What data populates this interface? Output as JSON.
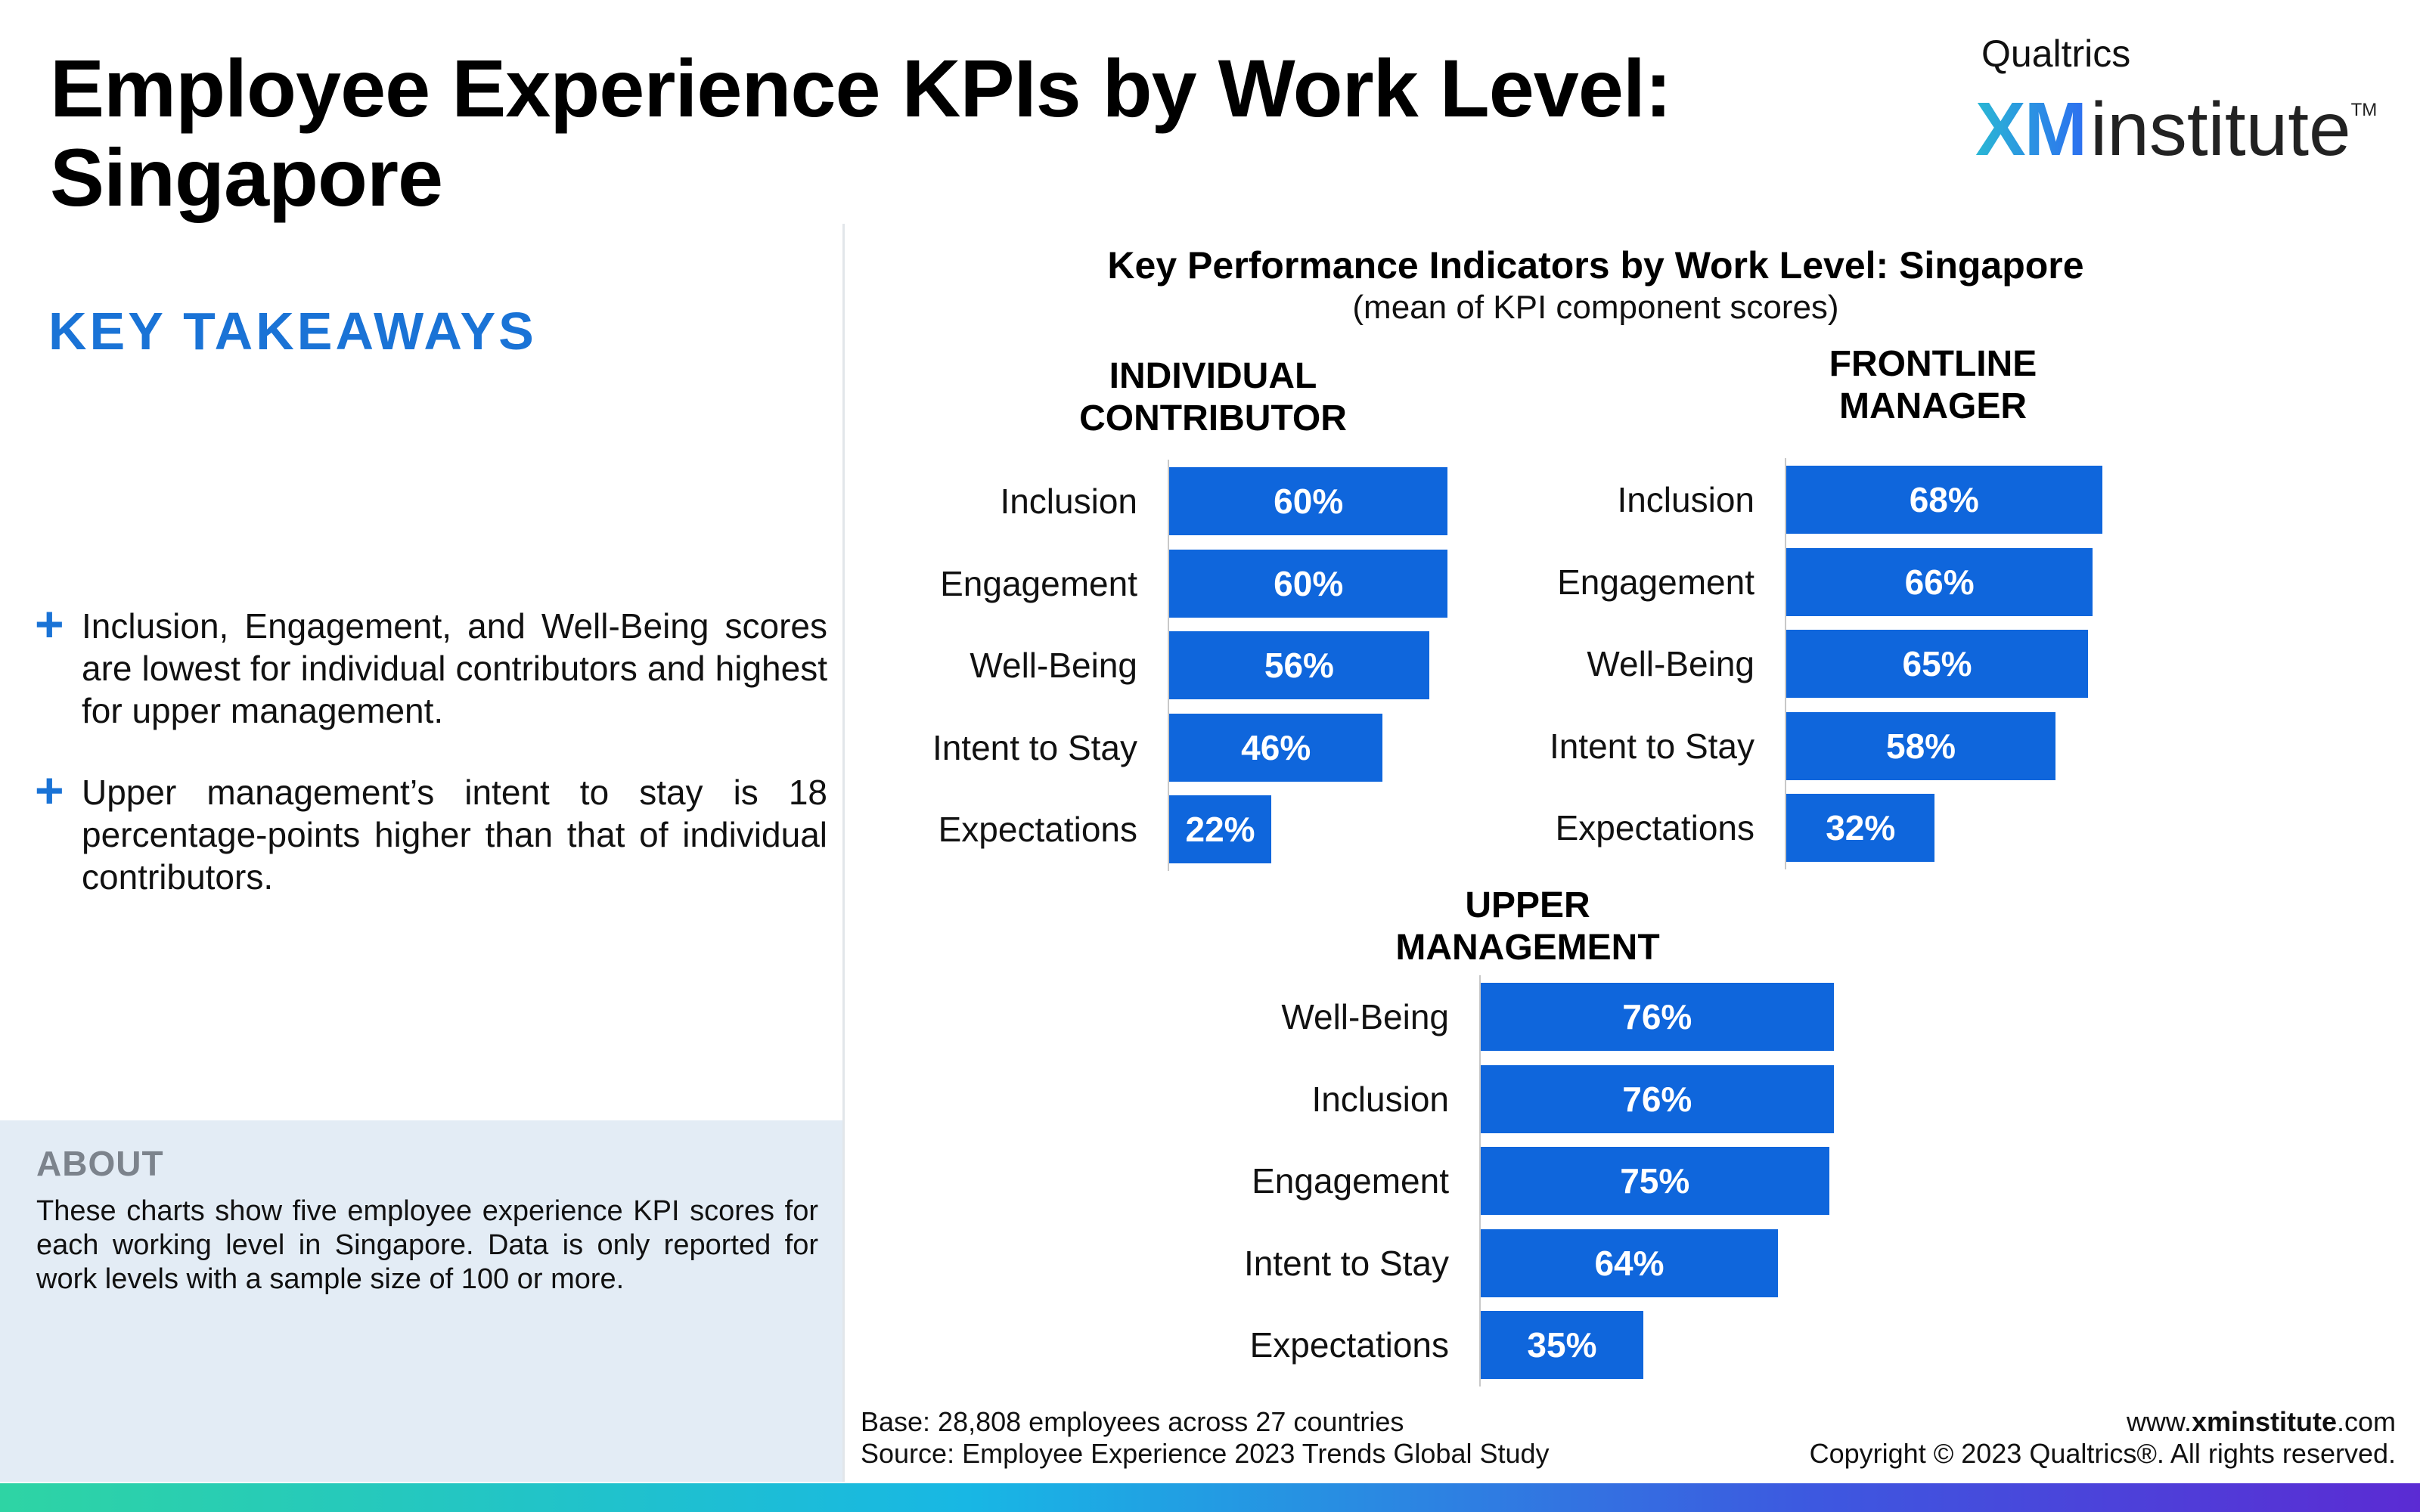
{
  "page": {
    "title": "Employee Experience KPIs by Work Level:\nSingapore"
  },
  "logo": {
    "brand": "Qualtrics",
    "xm": "XM",
    "name": "institute",
    "tm": "TM"
  },
  "takeaways": {
    "heading": "KEY TAKEAWAYS",
    "plus_icon": "+",
    "items": [
      "Inclusion, Engagement, and Well-Being scores are lowest for individual contributors and highest for upper management.",
      "Upper management’s intent to stay is 18 percentage-points higher than that of individual contributors."
    ]
  },
  "about": {
    "heading": "ABOUT",
    "text": "These charts show five employee experience KPI scores for each working level in Singapore. Data is only reported for work levels with a sample size of 100 or more."
  },
  "footer": {
    "base": "Base: 28,808 employees across 27 countries",
    "source": "Source: Employee Experience 2023 Trends Global Study",
    "website_prefix": "www.",
    "website_bold": "xminstitute",
    "website_suffix": ".com",
    "copyright": "Copyright © 2023 Qualtrics®. All rights reserved."
  },
  "colors": {
    "bar": "#0f66dc",
    "accent": "#1a73d6"
  },
  "chart_data": {
    "type": "bar",
    "orientation": "horizontal",
    "title": "Key Performance Indicators by Work Level: Singapore",
    "subtitle": "(mean of KPI component scores)",
    "unit": "%",
    "panels": [
      {
        "title": "INDIVIDUAL\nCONTRIBUTOR",
        "categories": [
          "Inclusion",
          "Engagement",
          "Well-Being",
          "Intent to Stay",
          "Expectations"
        ],
        "values": [
          60,
          60,
          56,
          46,
          22
        ],
        "labels": [
          "60%",
          "60%",
          "56%",
          "46%",
          "22%"
        ]
      },
      {
        "title": "FRONTLINE\nMANAGER",
        "categories": [
          "Inclusion",
          "Engagement",
          "Well-Being",
          "Intent to Stay",
          "Expectations"
        ],
        "values": [
          68,
          66,
          65,
          58,
          32
        ],
        "labels": [
          "68%",
          "66%",
          "65%",
          "58%",
          "32%"
        ]
      },
      {
        "title": "UPPER\nMANAGEMENT",
        "categories": [
          "Well-Being",
          "Inclusion",
          "Engagement",
          "Intent to Stay",
          "Expectations"
        ],
        "values": [
          76,
          76,
          75,
          64,
          35
        ],
        "labels": [
          "76%",
          "76%",
          "75%",
          "64%",
          "35%"
        ]
      }
    ]
  }
}
